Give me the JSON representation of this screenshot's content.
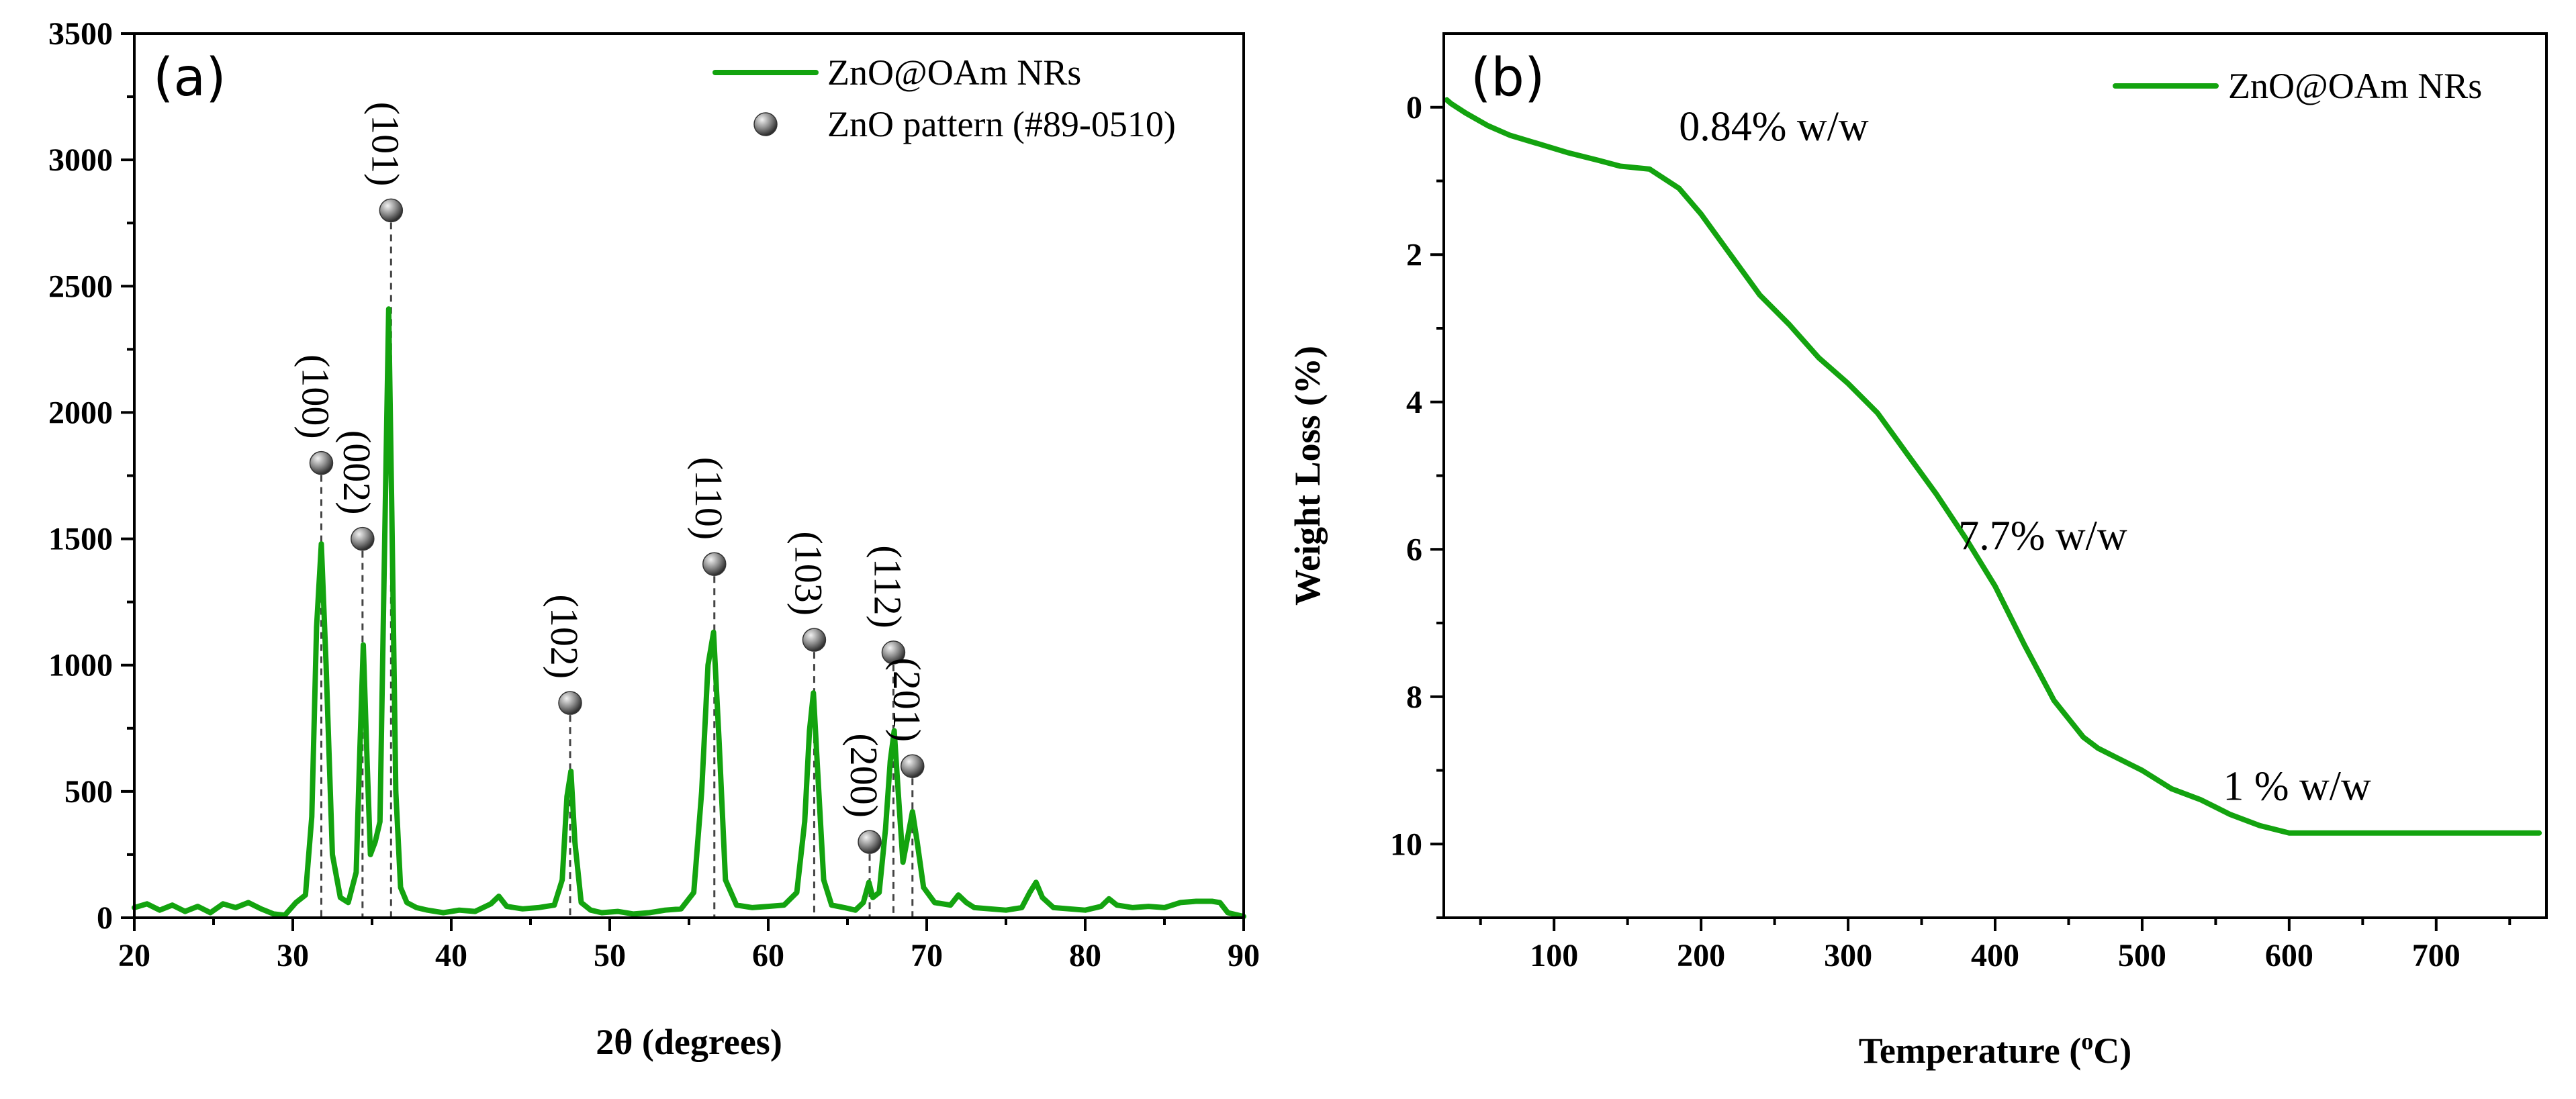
{
  "colors": {
    "series": "#13a30f",
    "marker": "#8a8a8a",
    "axis": "#000000"
  },
  "chart_data": [
    {
      "type": "line",
      "panel_label": "(a)",
      "title": "",
      "xlabel": "2θ (degrees)",
      "ylabel": "",
      "xlim": [
        20,
        90
      ],
      "ylim": [
        0,
        3500
      ],
      "xticks": [
        20,
        30,
        40,
        50,
        60,
        70,
        80,
        90
      ],
      "yticks": [
        0,
        500,
        1000,
        1500,
        2000,
        2500,
        3000,
        3500
      ],
      "legend": {
        "position": "top-right",
        "entries": [
          "ZnO@OAm NRs",
          "ZnO pattern (#89-0510)"
        ]
      },
      "series": [
        {
          "name": "ZnO@OAm NRs",
          "x": [
            20,
            20.8,
            21.6,
            22.4,
            23.2,
            24,
            24.8,
            25.6,
            26.4,
            27.2,
            28,
            28.8,
            29.5,
            30.2,
            30.8,
            31.2,
            31.5,
            31.8,
            32.1,
            32.5,
            33,
            33.5,
            34,
            34.2,
            34.45,
            34.7,
            34.9,
            35.2,
            35.5,
            35.8,
            36.05,
            36.25,
            36.5,
            36.8,
            37.2,
            37.8,
            38.5,
            39.5,
            40.5,
            41.5,
            42.5,
            43,
            43.5,
            44.5,
            45.5,
            46.5,
            47,
            47.3,
            47.55,
            47.8,
            48.2,
            48.8,
            49.5,
            50.5,
            51.5,
            52.5,
            53.5,
            54.5,
            55.3,
            55.8,
            56.2,
            56.55,
            56.9,
            57.3,
            58,
            59,
            60,
            61,
            61.8,
            62.3,
            62.6,
            62.85,
            63.1,
            63.5,
            64,
            64.8,
            65.5,
            66,
            66.35,
            66.6,
            67,
            67.4,
            67.7,
            67.95,
            68.2,
            68.5,
            68.8,
            69.1,
            69.4,
            69.8,
            70.5,
            71.5,
            72,
            72.5,
            73,
            74,
            75,
            76,
            76.5,
            76.9,
            77.3,
            78,
            79,
            80,
            81,
            81.5,
            82,
            83,
            84,
            85,
            86,
            87,
            88,
            88.5,
            89,
            90
          ],
          "values": [
            40,
            55,
            30,
            50,
            25,
            45,
            20,
            55,
            40,
            60,
            35,
            15,
            10,
            60,
            90,
            400,
            1150,
            1480,
            1000,
            250,
            80,
            60,
            180,
            600,
            1080,
            600,
            250,
            300,
            380,
            1500,
            2410,
            1600,
            500,
            120,
            60,
            40,
            30,
            20,
            30,
            25,
            55,
            85,
            45,
            35,
            40,
            50,
            150,
            480,
            580,
            300,
            60,
            30,
            20,
            25,
            15,
            20,
            30,
            35,
            100,
            500,
            1000,
            1130,
            700,
            150,
            50,
            40,
            45,
            50,
            100,
            380,
            740,
            890,
            600,
            150,
            50,
            40,
            30,
            60,
            140,
            80,
            100,
            350,
            620,
            740,
            500,
            220,
            320,
            420,
            300,
            120,
            60,
            50,
            90,
            60,
            40,
            35,
            30,
            40,
            100,
            140,
            80,
            40,
            35,
            30,
            45,
            75,
            50,
            40,
            45,
            40,
            60,
            65,
            65,
            60,
            20,
            5
          ]
        },
        {
          "name": "ZnO pattern (#89-0510)",
          "kind": "reference-markers",
          "x": [
            31.8,
            34.4,
            36.2,
            47.5,
            56.6,
            62.9,
            66.4,
            67.9,
            69.1
          ],
          "values": [
            1800,
            1500,
            2800,
            850,
            1400,
            1100,
            300,
            1050,
            600
          ],
          "labels": [
            "(100)",
            "(002)",
            "(101)",
            "(102)",
            "(110)",
            "(103)",
            "(200)",
            "(112)",
            "(201)"
          ]
        }
      ]
    },
    {
      "type": "line",
      "panel_label": "(b)",
      "title": "",
      "xlabel": "Temperature (",
      "xlabel_sup": "o",
      "xlabel_tail": "C)",
      "ylabel": "Weight Loss (%)",
      "xlim": [
        25,
        775
      ],
      "ylim": [
        -1,
        11
      ],
      "y_inverted": true,
      "xticks": [
        100,
        200,
        300,
        400,
        500,
        600,
        700
      ],
      "yticks": [
        0,
        2,
        4,
        6,
        8,
        10
      ],
      "legend": {
        "position": "top-right",
        "entries": [
          "ZnO@OAm NRs"
        ]
      },
      "annotations": [
        {
          "text": "0.84% w/w",
          "x": 185,
          "y": 0.45
        },
        {
          "text": "7.7% w/w",
          "x": 375,
          "y": 6.0
        },
        {
          "text": "1 % w/w",
          "x": 555,
          "y": 9.4
        }
      ],
      "series": [
        {
          "name": "ZnO@OAm NRs",
          "x": [
            27,
            30,
            40,
            55,
            70,
            90,
            110,
            130,
            145,
            165,
            185,
            200,
            220,
            240,
            260,
            280,
            300,
            320,
            340,
            360,
            380,
            400,
            420,
            440,
            460,
            470,
            480,
            500,
            520,
            540,
            560,
            580,
            600,
            650,
            700,
            770
          ],
          "values": [
            -0.1,
            -0.05,
            0.08,
            0.25,
            0.38,
            0.5,
            0.62,
            0.72,
            0.8,
            0.84,
            1.1,
            1.45,
            2.0,
            2.55,
            2.95,
            3.4,
            3.75,
            4.15,
            4.7,
            5.25,
            5.85,
            6.5,
            7.3,
            8.05,
            8.55,
            8.7,
            8.8,
            9.0,
            9.25,
            9.4,
            9.6,
            9.75,
            9.85,
            9.85,
            9.85,
            9.85
          ]
        }
      ]
    }
  ]
}
